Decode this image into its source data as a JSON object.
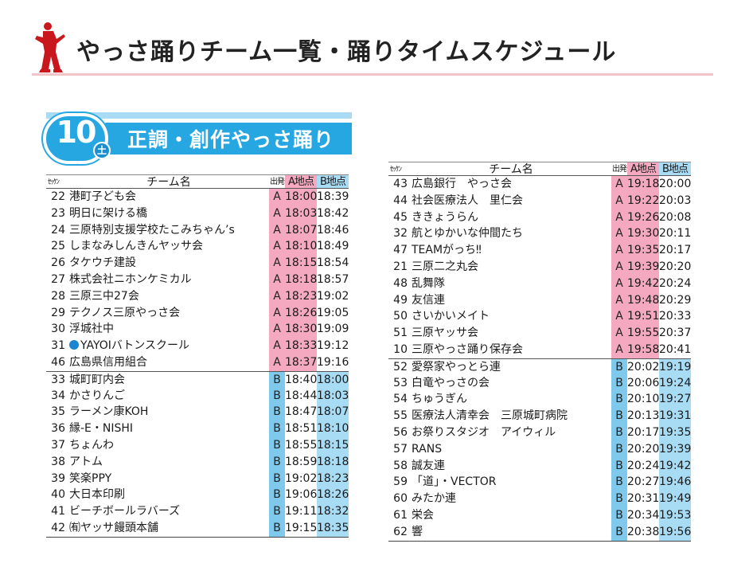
{
  "page": {
    "title": "やっさ踊りチーム一覧・踊りタイムスケジュール"
  },
  "banner": {
    "date_number": "10",
    "weekday": "土",
    "heading": "正調・創作やっさ踊り"
  },
  "table_headers": {
    "seq": "ｾｯｹﾝ",
    "team": "チーム名",
    "start": "出発",
    "point_a": "A地点",
    "point_b": "B地点"
  },
  "left_table": [
    {
      "no": "22",
      "team": "港町子ども会",
      "start": "A",
      "a_time": "18:00",
      "b_time": "18:39"
    },
    {
      "no": "23",
      "team": "明日に架ける橋",
      "start": "A",
      "a_time": "18:03",
      "b_time": "18:42"
    },
    {
      "no": "24",
      "team": "三原特別支援学校たこみちゃん’s",
      "start": "A",
      "a_time": "18:07",
      "b_time": "18:46"
    },
    {
      "no": "25",
      "team": "しまなみしんきんヤッサ会",
      "start": "A",
      "a_time": "18:10",
      "b_time": "18:49"
    },
    {
      "no": "26",
      "team": "タケウチ建設",
      "start": "A",
      "a_time": "18:15",
      "b_time": "18:54"
    },
    {
      "no": "27",
      "team": "株式会社ニホンケミカル",
      "start": "A",
      "a_time": "18:18",
      "b_time": "18:57"
    },
    {
      "no": "28",
      "team": "三原三中27会",
      "start": "A",
      "a_time": "18:23",
      "b_time": "19:02"
    },
    {
      "no": "29",
      "team": "テクノス三原やっさ会",
      "start": "A",
      "a_time": "18:26",
      "b_time": "19:05"
    },
    {
      "no": "30",
      "team": "浮城社中",
      "start": "A",
      "a_time": "18:30",
      "b_time": "19:09"
    },
    {
      "no": "31",
      "team": "YAYOIバトンスクール",
      "start": "A",
      "a_time": "18:33",
      "b_time": "19:12",
      "dot": true
    },
    {
      "no": "46",
      "team": "広島県信用組合",
      "start": "A",
      "a_time": "18:37",
      "b_time": "19:16"
    },
    {
      "no": "33",
      "team": "城町町内会",
      "start": "B",
      "a_time": "18:40",
      "b_time": "18:00"
    },
    {
      "no": "34",
      "team": "かさりんご",
      "start": "B",
      "a_time": "18:44",
      "b_time": "18:03"
    },
    {
      "no": "35",
      "team": "ラーメン康KOH",
      "start": "B",
      "a_time": "18:47",
      "b_time": "18:07"
    },
    {
      "no": "36",
      "team": "縁-E・NISHI",
      "start": "B",
      "a_time": "18:51",
      "b_time": "18:10"
    },
    {
      "no": "37",
      "team": "ちょんわ",
      "start": "B",
      "a_time": "18:55",
      "b_time": "18:15"
    },
    {
      "no": "38",
      "team": "アトム",
      "start": "B",
      "a_time": "18:59",
      "b_time": "18:18"
    },
    {
      "no": "39",
      "team": "笑楽PPY",
      "start": "B",
      "a_time": "19:02",
      "b_time": "18:23"
    },
    {
      "no": "40",
      "team": "大日本印刷",
      "start": "B",
      "a_time": "19:06",
      "b_time": "18:26"
    },
    {
      "no": "41",
      "team": "ビーチボールラバーズ",
      "start": "B",
      "a_time": "19:11",
      "b_time": "18:32"
    },
    {
      "no": "42",
      "team": "㈲ヤッサ饅頭本舗",
      "start": "B",
      "a_time": "19:15",
      "b_time": "18:35"
    }
  ],
  "right_table": [
    {
      "no": "43",
      "team": "広島銀行　やっさ会",
      "start": "A",
      "a_time": "19:18",
      "b_time": "20:00"
    },
    {
      "no": "44",
      "team": "社会医療法人　里仁会",
      "start": "A",
      "a_time": "19:22",
      "b_time": "20:03"
    },
    {
      "no": "45",
      "team": "ききょうらん",
      "start": "A",
      "a_time": "19:26",
      "b_time": "20:08"
    },
    {
      "no": "32",
      "team": "航とゆかいな仲間たち",
      "start": "A",
      "a_time": "19:30",
      "b_time": "20:11"
    },
    {
      "no": "47",
      "team": "TEAMがっち‼",
      "start": "A",
      "a_time": "19:35",
      "b_time": "20:17"
    },
    {
      "no": "21",
      "team": "三原二之丸会",
      "start": "A",
      "a_time": "19:39",
      "b_time": "20:20"
    },
    {
      "no": "48",
      "team": "乱舞隊",
      "start": "A",
      "a_time": "19:42",
      "b_time": "20:24"
    },
    {
      "no": "49",
      "team": "友信連",
      "start": "A",
      "a_time": "19:48",
      "b_time": "20:29"
    },
    {
      "no": "50",
      "team": "さいかいメイト",
      "start": "A",
      "a_time": "19:51",
      "b_time": "20:33"
    },
    {
      "no": "51",
      "team": "三原ヤッサ会",
      "start": "A",
      "a_time": "19:55",
      "b_time": "20:37"
    },
    {
      "no": "10",
      "team": "三原やっさ踊り保存会",
      "start": "A",
      "a_time": "19:58",
      "b_time": "20:41"
    },
    {
      "no": "52",
      "team": "愛祭家やっとら連",
      "start": "B",
      "a_time": "20:02",
      "b_time": "19:19"
    },
    {
      "no": "53",
      "team": "白竜やっさの会",
      "start": "B",
      "a_time": "20:06",
      "b_time": "19:24"
    },
    {
      "no": "54",
      "team": "ちゅうぎん",
      "start": "B",
      "a_time": "20:10",
      "b_time": "19:27"
    },
    {
      "no": "55",
      "team": "医療法人清幸会　三原城町病院",
      "start": "B",
      "a_time": "20:13",
      "b_time": "19:31"
    },
    {
      "no": "56",
      "team": "お祭りスタジオ　アイウィル",
      "start": "B",
      "a_time": "20:17",
      "b_time": "19:35"
    },
    {
      "no": "57",
      "team": "RANS",
      "start": "B",
      "a_time": "20:20",
      "b_time": "19:39"
    },
    {
      "no": "58",
      "team": "誠友連",
      "start": "B",
      "a_time": "20:24",
      "b_time": "19:42"
    },
    {
      "no": "59",
      "team": "「道」・VECTOR",
      "start": "B",
      "a_time": "20:27",
      "b_time": "19:46"
    },
    {
      "no": "60",
      "team": "みたか連",
      "start": "B",
      "a_time": "20:31",
      "b_time": "19:49"
    },
    {
      "no": "61",
      "team": "栄会",
      "start": "B",
      "a_time": "20:34",
      "b_time": "19:53"
    },
    {
      "no": "62",
      "team": "響",
      "start": "B",
      "a_time": "20:38",
      "b_time": "19:56"
    }
  ],
  "colors": {
    "a_group": "#f4a9c0",
    "b_group": "#a8dcf5",
    "banner_blue": "#27a7e2",
    "dancer_red": "#c8181e"
  },
  "icons": {
    "logo": "dancer-silhouette-icon",
    "bullet": "blue-circle-icon"
  }
}
